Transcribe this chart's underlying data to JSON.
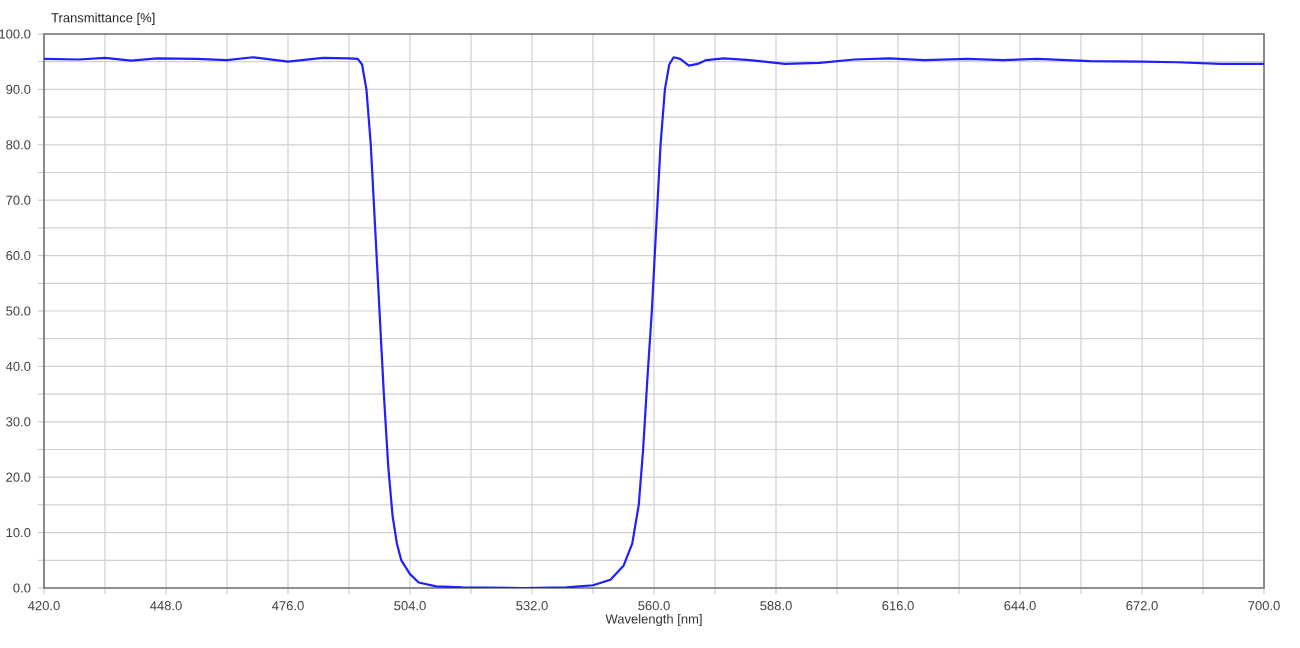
{
  "chart_data": {
    "type": "line",
    "xlabel": "Wavelength [nm]",
    "ylabel": "Transmittance [%]",
    "xlim": [
      420,
      700
    ],
    "ylim": [
      0,
      100
    ],
    "xticks": [
      {
        "value": 420,
        "label": "420.0"
      },
      {
        "value": 434,
        "label": null
      },
      {
        "value": 448,
        "label": "448.0"
      },
      {
        "value": 462,
        "label": null
      },
      {
        "value": 476,
        "label": "476.0"
      },
      {
        "value": 490,
        "label": null
      },
      {
        "value": 504,
        "label": "504.0"
      },
      {
        "value": 518,
        "label": null
      },
      {
        "value": 532,
        "label": "532.0"
      },
      {
        "value": 546,
        "label": null
      },
      {
        "value": 560,
        "label": "560.0"
      },
      {
        "value": 574,
        "label": null
      },
      {
        "value": 588,
        "label": "588.0"
      },
      {
        "value": 602,
        "label": null
      },
      {
        "value": 616,
        "label": "616.0"
      },
      {
        "value": 630,
        "label": null
      },
      {
        "value": 644,
        "label": "644.0"
      },
      {
        "value": 658,
        "label": null
      },
      {
        "value": 672,
        "label": "672.0"
      },
      {
        "value": 686,
        "label": null
      },
      {
        "value": 700,
        "label": "700.0"
      }
    ],
    "yticks": [
      {
        "value": 0,
        "label": "0.0"
      },
      {
        "value": 5,
        "label": null
      },
      {
        "value": 10,
        "label": "10.0"
      },
      {
        "value": 15,
        "label": null
      },
      {
        "value": 20,
        "label": "20.0"
      },
      {
        "value": 25,
        "label": null
      },
      {
        "value": 30,
        "label": "30.0"
      },
      {
        "value": 35,
        "label": null
      },
      {
        "value": 40,
        "label": "40.0"
      },
      {
        "value": 45,
        "label": null
      },
      {
        "value": 50,
        "label": "50.0"
      },
      {
        "value": 55,
        "label": null
      },
      {
        "value": 60,
        "label": "60.0"
      },
      {
        "value": 65,
        "label": null
      },
      {
        "value": 70,
        "label": "70.0"
      },
      {
        "value": 75,
        "label": null
      },
      {
        "value": 80,
        "label": "80.0"
      },
      {
        "value": 85,
        "label": null
      },
      {
        "value": 90,
        "label": "90.0"
      },
      {
        "value": 95,
        "label": null
      },
      {
        "value": 100,
        "label": "100.0"
      }
    ],
    "grid": true,
    "marker": "none",
    "line_style": "solid",
    "x": [
      420,
      428,
      434,
      440,
      446,
      455,
      462,
      468,
      476,
      484,
      490,
      492,
      493,
      494,
      495,
      496,
      497,
      498,
      499,
      500,
      501,
      502,
      504,
      506,
      510,
      516,
      530,
      540,
      546,
      550,
      553,
      555,
      556.5,
      557.5,
      558.5,
      559.5,
      560.5,
      561.5,
      562.5,
      563.5,
      564.5,
      566,
      568,
      570,
      572,
      576,
      582,
      590,
      598,
      606,
      614,
      622,
      632,
      640,
      648,
      660,
      672,
      680,
      690,
      700
    ],
    "series": [
      {
        "color": "#1f1fff",
        "values": [
          95.5,
          95.4,
          95.7,
          95.2,
          95.6,
          95.5,
          95.3,
          95.8,
          95.0,
          95.7,
          95.6,
          95.5,
          94.5,
          90,
          80,
          65,
          50,
          35,
          22,
          13,
          8,
          5,
          2.5,
          1,
          0.3,
          0.1,
          0,
          0.1,
          0.5,
          1.5,
          4,
          8,
          15,
          25,
          38,
          50,
          65,
          80,
          90,
          94.5,
          95.8,
          95.5,
          94.3,
          94.6,
          95.3,
          95.6,
          95.3,
          94.6,
          94.8,
          95.4,
          95.6,
          95.3,
          95.5,
          95.3,
          95.5,
          95.1,
          95.0,
          94.9,
          94.6,
          94.6
        ]
      }
    ]
  }
}
